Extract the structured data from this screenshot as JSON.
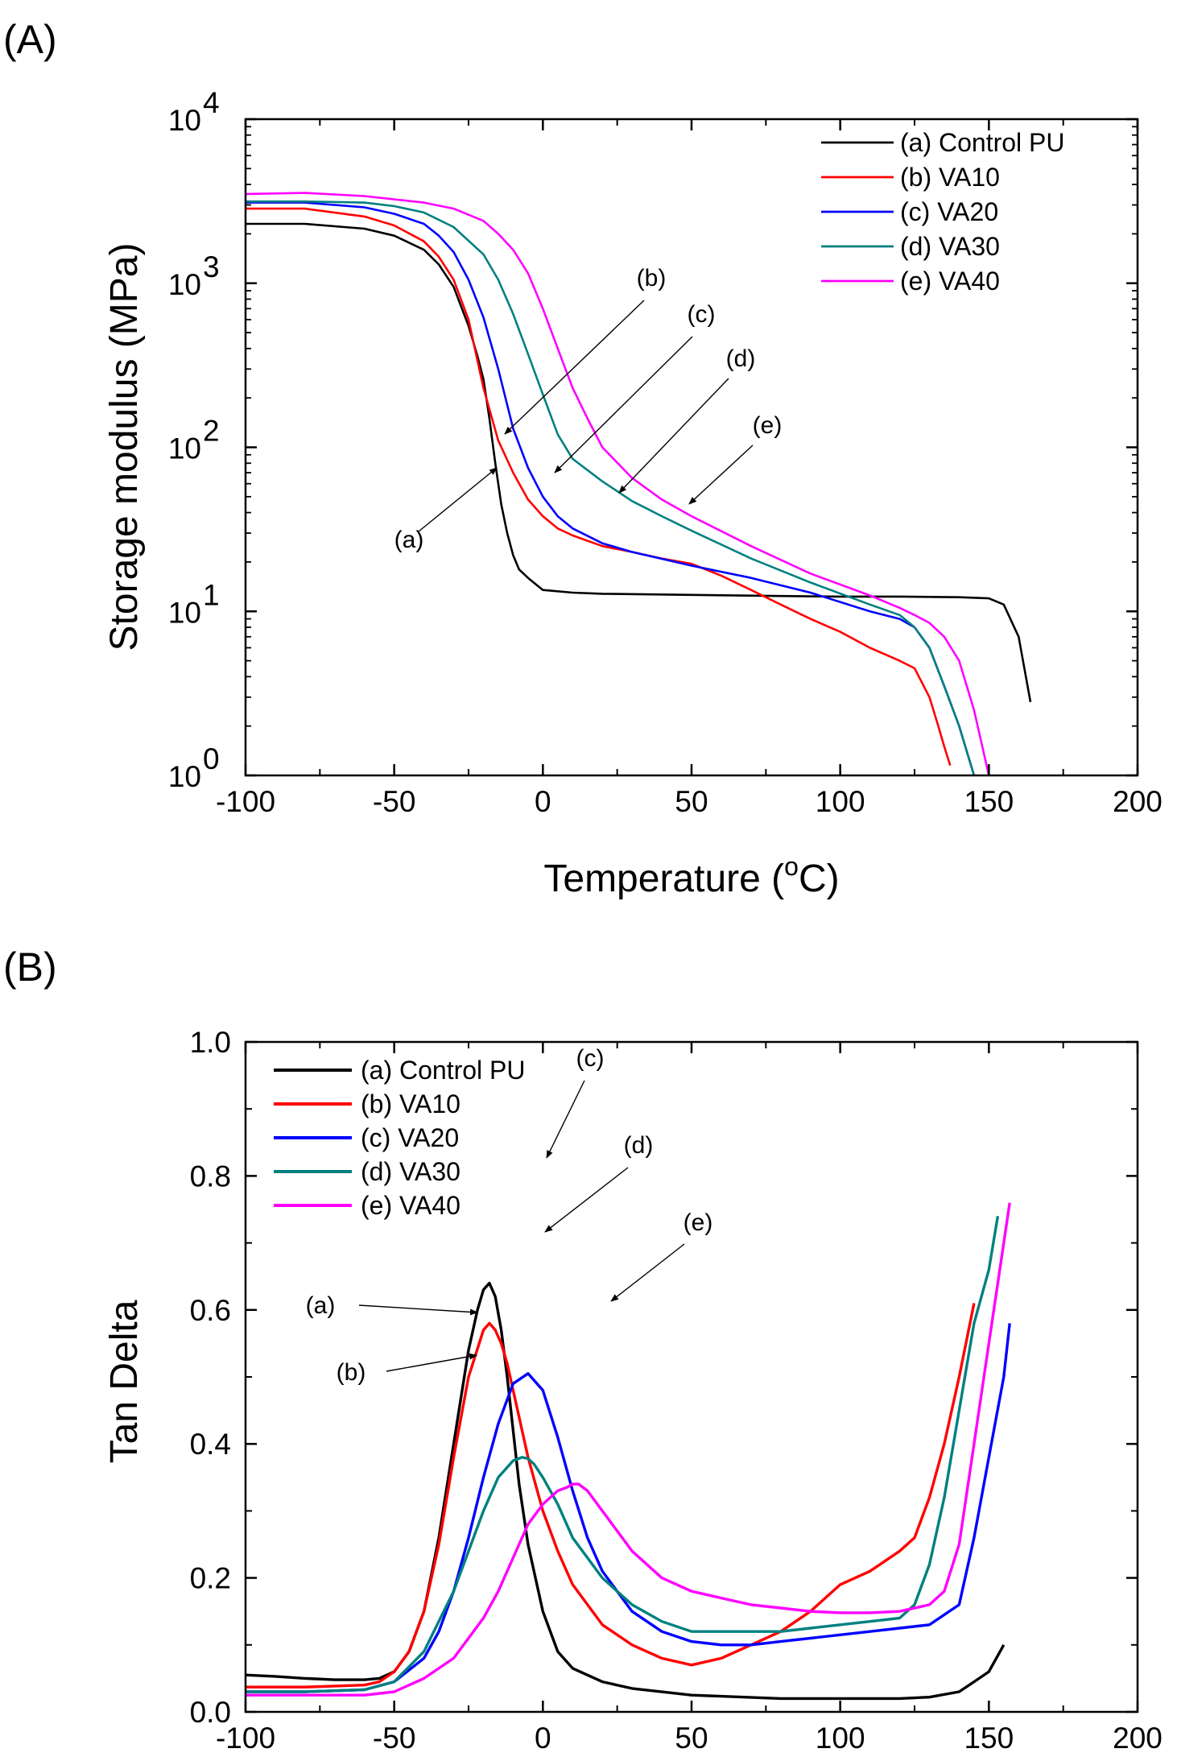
{
  "panels": [
    "(A)",
    "(B)"
  ],
  "colors": {
    "control": "#000000",
    "va10": "#ff0000",
    "va20": "#0000ff",
    "va30": "#008080",
    "va40": "#ff00ff"
  },
  "chart_data": [
    {
      "type": "line",
      "panel_label": "(A)",
      "title": "",
      "xlabel": "Temperature (",
      "xlabel_sup": "o",
      "xlabel_unit": "C)",
      "ylabel": "Storage modulus (MPa)",
      "xlim": [
        -100,
        200
      ],
      "ylim": [
        1,
        10000
      ],
      "yscale": "log",
      "x_ticks": [
        "-100",
        "-50",
        "0",
        "50",
        "100",
        "150",
        "200"
      ],
      "y_ticks": [
        {
          "base": "10",
          "exp": "0"
        },
        {
          "base": "10",
          "exp": "1"
        },
        {
          "base": "10",
          "exp": "2"
        },
        {
          "base": "10",
          "exp": "3"
        },
        {
          "base": "10",
          "exp": "4"
        }
      ],
      "grid": false,
      "legend_position": "top-right",
      "series": [
        {
          "name": "(a) Control PU",
          "color": "#000000",
          "x": [
            -100,
            -80,
            -60,
            -50,
            -40,
            -35,
            -30,
            -25,
            -22,
            -20,
            -18,
            -16,
            -14,
            -12,
            -10,
            -8,
            -5,
            0,
            10,
            20,
            50,
            80,
            100,
            120,
            140,
            150,
            155,
            160,
            164
          ],
          "y": [
            2300,
            2300,
            2150,
            1950,
            1600,
            1300,
            950,
            550,
            360,
            260,
            150,
            80,
            45,
            30,
            22,
            18,
            16,
            13.5,
            13,
            12.8,
            12.6,
            12.4,
            12.3,
            12.3,
            12.2,
            12.0,
            11,
            7,
            2.8
          ]
        },
        {
          "name": "(b) VA10",
          "color": "#ff0000",
          "x": [
            -100,
            -80,
            -60,
            -50,
            -40,
            -35,
            -30,
            -25,
            -20,
            -15,
            -10,
            -5,
            0,
            5,
            10,
            20,
            30,
            40,
            50,
            60,
            70,
            80,
            90,
            100,
            110,
            120,
            125,
            130,
            133,
            135,
            137
          ],
          "y": [
            2850,
            2850,
            2550,
            2250,
            1800,
            1450,
            1050,
            600,
            230,
            110,
            70,
            48,
            38,
            32,
            29,
            25,
            23,
            21,
            19.5,
            16.5,
            13.5,
            11,
            9,
            7.5,
            6,
            5,
            4.5,
            3,
            2,
            1.5,
            1.15
          ]
        },
        {
          "name": "(c) VA20",
          "color": "#0000ff",
          "x": [
            -100,
            -80,
            -60,
            -50,
            -40,
            -35,
            -30,
            -25,
            -20,
            -15,
            -10,
            -5,
            0,
            5,
            10,
            20,
            30,
            50,
            70,
            90,
            110,
            120,
            125,
            130,
            135,
            140,
            145
          ],
          "y": [
            3100,
            3100,
            2900,
            2650,
            2300,
            1950,
            1550,
            1050,
            620,
            300,
            130,
            75,
            50,
            38,
            32,
            26,
            23,
            19,
            16,
            13,
            10,
            9,
            8,
            6,
            3.5,
            2,
            1
          ]
        },
        {
          "name": "(d) VA30",
          "color": "#008080",
          "x": [
            -100,
            -80,
            -60,
            -50,
            -40,
            -30,
            -20,
            -15,
            -10,
            -5,
            0,
            5,
            10,
            20,
            30,
            40,
            50,
            70,
            90,
            110,
            120,
            125,
            130,
            135,
            140,
            145
          ],
          "y": [
            3150,
            3150,
            3100,
            2950,
            2700,
            2200,
            1500,
            1050,
            650,
            370,
            210,
            120,
            85,
            62,
            47,
            38,
            31,
            21,
            15,
            11,
            9.5,
            8,
            6,
            3.5,
            2,
            1
          ]
        },
        {
          "name": "(e) VA40",
          "color": "#ff00ff",
          "x": [
            -100,
            -80,
            -60,
            -40,
            -30,
            -20,
            -15,
            -10,
            -5,
            0,
            5,
            10,
            15,
            20,
            30,
            40,
            50,
            70,
            90,
            110,
            120,
            125,
            130,
            135,
            140,
            145,
            150
          ],
          "y": [
            3500,
            3550,
            3400,
            3100,
            2850,
            2400,
            2000,
            1600,
            1150,
            700,
            400,
            230,
            150,
            100,
            65,
            48,
            38,
            25,
            17,
            12.5,
            10.5,
            9.5,
            8.5,
            7,
            5,
            2.5,
            1
          ]
        }
      ],
      "annotations": [
        {
          "label": "(b)"
        },
        {
          "label": "(c)"
        },
        {
          "label": "(d)"
        },
        {
          "label": "(e)"
        },
        {
          "label": "(a)"
        }
      ]
    },
    {
      "type": "line",
      "panel_label": "(B)",
      "title": "",
      "xlabel": "",
      "ylabel": "Tan Delta",
      "xlim": [
        -100,
        200
      ],
      "ylim": [
        0.0,
        1.0
      ],
      "x_ticks": [
        "-100",
        "-50",
        "0",
        "50",
        "100",
        "150",
        "200"
      ],
      "y_ticks": [
        "0.0",
        "0.2",
        "0.4",
        "0.6",
        "0.8",
        "1.0"
      ],
      "grid": false,
      "legend_position": "top-left",
      "series": [
        {
          "name": "(a) Control PU",
          "color": "#000000",
          "x": [
            -100,
            -90,
            -80,
            -70,
            -60,
            -55,
            -50,
            -45,
            -40,
            -35,
            -30,
            -25,
            -22,
            -20,
            -18,
            -16,
            -14,
            -12,
            -10,
            -8,
            -5,
            0,
            5,
            10,
            20,
            30,
            50,
            80,
            100,
            120,
            130,
            140,
            145,
            150,
            155
          ],
          "y": [
            0.055,
            0.053,
            0.05,
            0.048,
            0.048,
            0.05,
            0.06,
            0.09,
            0.15,
            0.26,
            0.4,
            0.54,
            0.6,
            0.63,
            0.64,
            0.62,
            0.57,
            0.5,
            0.42,
            0.34,
            0.25,
            0.15,
            0.09,
            0.065,
            0.045,
            0.035,
            0.025,
            0.02,
            0.02,
            0.02,
            0.022,
            0.03,
            0.045,
            0.06,
            0.1
          ]
        },
        {
          "name": "(b) VA10",
          "color": "#ff0000",
          "x": [
            -100,
            -80,
            -60,
            -55,
            -50,
            -45,
            -40,
            -35,
            -30,
            -25,
            -20,
            -18,
            -16,
            -14,
            -12,
            -10,
            -8,
            -5,
            0,
            5,
            10,
            20,
            30,
            40,
            50,
            60,
            70,
            80,
            90,
            100,
            110,
            120,
            125,
            130,
            135,
            140,
            145
          ],
          "y": [
            0.037,
            0.037,
            0.04,
            0.045,
            0.06,
            0.09,
            0.15,
            0.25,
            0.38,
            0.5,
            0.57,
            0.58,
            0.57,
            0.55,
            0.52,
            0.48,
            0.44,
            0.38,
            0.3,
            0.24,
            0.19,
            0.13,
            0.1,
            0.08,
            0.07,
            0.08,
            0.1,
            0.12,
            0.15,
            0.19,
            0.21,
            0.24,
            0.26,
            0.32,
            0.4,
            0.5,
            0.61
          ]
        },
        {
          "name": "(c) VA20",
          "color": "#0000ff",
          "x": [
            -100,
            -80,
            -60,
            -50,
            -40,
            -35,
            -30,
            -25,
            -20,
            -15,
            -10,
            -5,
            0,
            5,
            10,
            15,
            20,
            30,
            40,
            50,
            60,
            70,
            80,
            90,
            100,
            110,
            120,
            130,
            140,
            145,
            150,
            155,
            157
          ],
          "y": [
            0.03,
            0.03,
            0.033,
            0.045,
            0.08,
            0.12,
            0.18,
            0.26,
            0.35,
            0.43,
            0.49,
            0.505,
            0.48,
            0.41,
            0.33,
            0.26,
            0.21,
            0.15,
            0.12,
            0.105,
            0.1,
            0.1,
            0.105,
            0.11,
            0.115,
            0.12,
            0.125,
            0.13,
            0.16,
            0.26,
            0.38,
            0.5,
            0.58
          ]
        },
        {
          "name": "(d) VA30",
          "color": "#008080",
          "x": [
            -100,
            -80,
            -60,
            -50,
            -40,
            -30,
            -25,
            -20,
            -15,
            -10,
            -7,
            -5,
            -3,
            0,
            5,
            10,
            20,
            30,
            40,
            50,
            60,
            70,
            80,
            90,
            100,
            110,
            120,
            125,
            130,
            135,
            140,
            145,
            150,
            153
          ],
          "y": [
            0.03,
            0.03,
            0.033,
            0.045,
            0.09,
            0.18,
            0.24,
            0.3,
            0.35,
            0.375,
            0.38,
            0.378,
            0.37,
            0.35,
            0.31,
            0.26,
            0.2,
            0.16,
            0.135,
            0.12,
            0.12,
            0.12,
            0.12,
            0.125,
            0.13,
            0.135,
            0.14,
            0.16,
            0.22,
            0.32,
            0.45,
            0.58,
            0.66,
            0.74
          ]
        },
        {
          "name": "(e) VA40",
          "color": "#ff00ff",
          "x": [
            -100,
            -80,
            -60,
            -50,
            -40,
            -30,
            -20,
            -15,
            -10,
            -5,
            0,
            5,
            8,
            10,
            12,
            15,
            20,
            25,
            30,
            40,
            50,
            60,
            70,
            80,
            90,
            100,
            110,
            120,
            130,
            135,
            140,
            145,
            150,
            155,
            157
          ],
          "y": [
            0.025,
            0.025,
            0.025,
            0.03,
            0.05,
            0.08,
            0.14,
            0.18,
            0.23,
            0.28,
            0.31,
            0.33,
            0.335,
            0.34,
            0.34,
            0.33,
            0.3,
            0.27,
            0.24,
            0.2,
            0.18,
            0.17,
            0.16,
            0.155,
            0.15,
            0.148,
            0.148,
            0.15,
            0.16,
            0.18,
            0.25,
            0.4,
            0.55,
            0.7,
            0.76
          ]
        }
      ],
      "annotations": [
        {
          "label": "(a)"
        },
        {
          "label": "(b)"
        },
        {
          "label": "(c)"
        },
        {
          "label": "(d)"
        },
        {
          "label": "(e)"
        }
      ]
    }
  ]
}
